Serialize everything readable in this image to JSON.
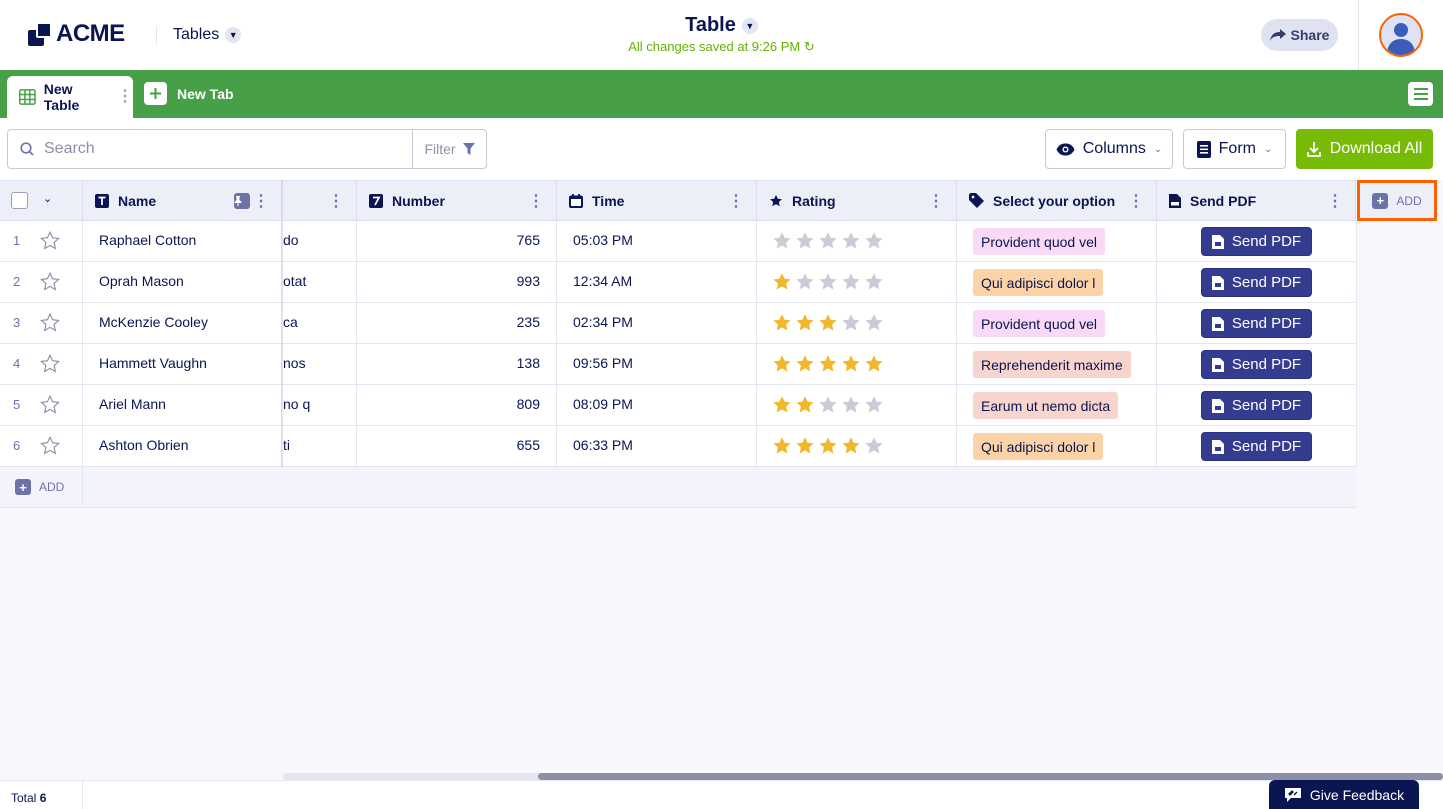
{
  "header": {
    "logo_text": "ACME",
    "tables_label": "Tables",
    "title": "Table",
    "saved_status": "All changes saved at 9:26 PM",
    "share_label": "Share"
  },
  "tabs": {
    "active_label": "New Table",
    "new_tab_label": "New Tab"
  },
  "toolbar": {
    "search_placeholder": "Search",
    "filter_label": "Filter",
    "columns_label": "Columns",
    "form_label": "Form",
    "download_label": "Download All"
  },
  "columns": {
    "name": "Name",
    "number": "Number",
    "time": "Time",
    "rating": "Rating",
    "select": "Select your option",
    "pdf": "Send PDF",
    "add": "ADD"
  },
  "rows": [
    {
      "num": "1",
      "name": "Raphael Cotton",
      "cut": "do",
      "number": "765",
      "time": "05:03 PM",
      "rating": 0,
      "option": "Provident quod vel",
      "option_color": "#f9d9f5",
      "pdf": "Send PDF"
    },
    {
      "num": "2",
      "name": "Oprah Mason",
      "cut": "otat",
      "number": "993",
      "time": "12:34 AM",
      "rating": 1,
      "option": "Qui adipisci dolor l",
      "option_color": "#fbd3a6",
      "pdf": "Send PDF"
    },
    {
      "num": "3",
      "name": "McKenzie Cooley",
      "cut": "ca",
      "number": "235",
      "time": "02:34 PM",
      "rating": 3,
      "option": "Provident quod vel",
      "option_color": "#f9d9f5",
      "pdf": "Send PDF"
    },
    {
      "num": "4",
      "name": "Hammett Vaughn",
      "cut": "nos",
      "number": "138",
      "time": "09:56 PM",
      "rating": 5,
      "option": "Reprehenderit maxime",
      "option_color": "#f8d5cc",
      "pdf": "Send PDF"
    },
    {
      "num": "5",
      "name": "Ariel Mann",
      "cut": "no q",
      "number": "809",
      "time": "08:09 PM",
      "rating": 2,
      "option": "Earum ut nemo dicta",
      "option_color": "#f8d5cc",
      "pdf": "Send PDF"
    },
    {
      "num": "6",
      "name": "Ashton Obrien",
      "cut": "ti",
      "number": "655",
      "time": "06:33 PM",
      "rating": 4,
      "option": "Qui adipisci dolor l",
      "option_color": "#fbd3a6",
      "pdf": "Send PDF"
    }
  ],
  "add_row_label": "ADD",
  "footer": {
    "total_label": "Total",
    "total_count": "6",
    "feedback_label": "Give Feedback"
  },
  "colors": {
    "tabbar": "#47a047",
    "download": "#78bb07",
    "pdf_button": "#343c90",
    "star_filled": "#f3b72b",
    "star_empty": "#c9ccd6",
    "highlight": "#ff6100"
  }
}
